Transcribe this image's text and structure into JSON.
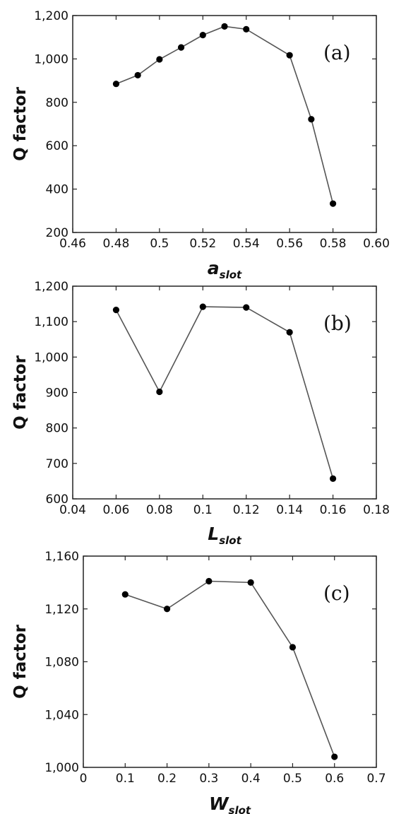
{
  "chart_data": [
    {
      "type": "line",
      "panel_label": "(a)",
      "ylabel": "Q factor",
      "xlabel_main": "a",
      "xlabel_sub": "slot",
      "xlim": [
        0.46,
        0.6
      ],
      "ylim": [
        200,
        1200
      ],
      "xticks": [
        "0.46",
        "0.48",
        "0.5",
        "0.52",
        "0.54",
        "0.56",
        "0.58",
        "0.60"
      ],
      "yticks": [
        "200",
        "400",
        "600",
        "800",
        "1,000",
        "1,200"
      ],
      "series": [
        {
          "x": [
            0.48,
            0.49,
            0.5,
            0.51,
            0.52,
            0.53,
            0.54,
            0.56,
            0.57,
            0.58
          ],
          "y": [
            885,
            925,
            998,
            1053,
            1110,
            1150,
            1137,
            1017,
            722,
            333
          ]
        }
      ]
    },
    {
      "type": "line",
      "panel_label": "(b)",
      "ylabel": "Q factor",
      "xlabel_main": "L",
      "xlabel_sub": "slot",
      "xlim": [
        0.04,
        0.18
      ],
      "ylim": [
        600,
        1200
      ],
      "xticks": [
        "0.04",
        "0.06",
        "0.08",
        "0.1",
        "0.12",
        "0.14",
        "0.16",
        "0.18"
      ],
      "yticks": [
        "600",
        "700",
        "800",
        "900",
        "1,000",
        "1,100",
        "1,200"
      ],
      "series": [
        {
          "x": [
            0.06,
            0.08,
            0.1,
            0.12,
            0.14,
            0.16
          ],
          "y": [
            1133,
            902,
            1142,
            1140,
            1070,
            657
          ]
        }
      ]
    },
    {
      "type": "line",
      "panel_label": "(c)",
      "ylabel": "Q factor",
      "xlabel_main": "W",
      "xlabel_sub": "slot",
      "xlim": [
        0,
        0.7
      ],
      "ylim": [
        1000,
        1160
      ],
      "xticks": [
        "0",
        "0.1",
        "0.2",
        "0.3",
        "0.4",
        "0.5",
        "0.6",
        "0.7"
      ],
      "yticks": [
        "1,000",
        "1,040",
        "1,080",
        "1,120",
        "1,160"
      ],
      "series": [
        {
          "x": [
            0.1,
            0.2,
            0.3,
            0.4,
            0.5,
            0.6
          ],
          "y": [
            1131,
            1120,
            1141,
            1140,
            1091,
            1008
          ]
        }
      ]
    }
  ],
  "colors": {
    "line": "#555555",
    "marker": "#000000",
    "axis": "#222222"
  }
}
